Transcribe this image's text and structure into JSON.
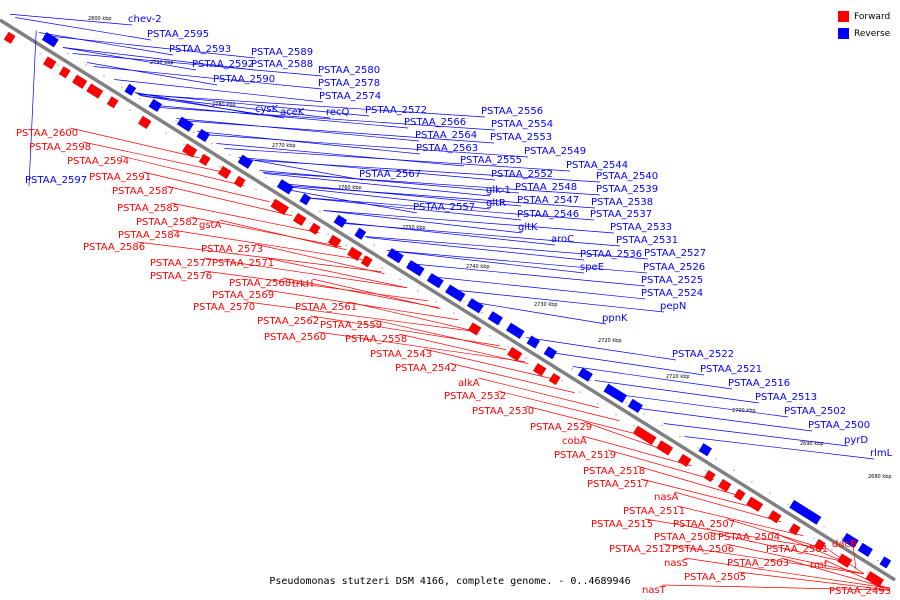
{
  "caption": "Pseudomonas stutzeri DSM 4166, complete genome. - 0..4689946",
  "legend": [
    {
      "label": "Forward",
      "color": "#ff0000"
    },
    {
      "label": "Reverse",
      "color": "#0000ff"
    }
  ],
  "colors": {
    "forward": "#ff0000",
    "reverse": "#0000ff",
    "axis": "#808080"
  },
  "scale_ticks": [
    "2800 kbp",
    "2790 kbp",
    "2780 kbp",
    "2770 kbp",
    "2760 kbp",
    "2750 kbp",
    "2740 kbp",
    "2730 kbp",
    "2720 kbp",
    "2710 kbp",
    "2700 kbp",
    "2690 kbp",
    "2680 kbp"
  ],
  "reverse_genes": [
    "chev-2",
    "PSTAA_2595",
    "PSTAA_2593",
    "PSTAA_2592",
    "PSTAA_2589",
    "PSTAA_2588",
    "PSTAA_2590",
    "PSTAA_2580",
    "PSTAA_2578",
    "PSTAA_2574",
    "cysK",
    "aceK",
    "recQ",
    "PSTAA_2572",
    "PSTAA_2566",
    "PSTAA_2564",
    "PSTAA_2563",
    "PSTAA_2556",
    "PSTAA_2554",
    "PSTAA_2553",
    "PSTAA_2549",
    "PSTAA_2555",
    "PSTAA_2552",
    "PSTAA_2544",
    "PSTAA_2540",
    "PSTAA_2567",
    "glk-1",
    "PSTAA_2548",
    "PSTAA_2539",
    "gltR",
    "PSTAA_2547",
    "PSTAA_2538",
    "PSTAA_2557",
    "PSTAA_2546",
    "PSTAA_2537",
    "gltK",
    "PSTAA_2533",
    "aroC",
    "PSTAA_2531",
    "PSTAA_2536",
    "PSTAA_2527",
    "speE",
    "PSTAA_2526",
    "PSTAA_2525",
    "PSTAA_2524",
    "pepN",
    "ppnK",
    "PSTAA_2522",
    "PSTAA_2521",
    "PSTAA_2516",
    "PSTAA_2513",
    "PSTAA_2502",
    "PSTAA_2500",
    "pyrD",
    "rlmL",
    "PSTAA_2597"
  ],
  "forward_genes": [
    "PSTAA_2600",
    "PSTAA_2598",
    "PSTAA_2594",
    "PSTAA_2591",
    "PSTAA_2587",
    "PSTAA_2585",
    "PSTAA_2582",
    "gstA",
    "PSTAA_2584",
    "PSTAA_2586",
    "PSTAA_2573",
    "PSTAA_2577",
    "PSTAA_2571",
    "PSTAA_2576",
    "PSTAA_2568",
    "trkH",
    "PSTAA_2569",
    "PSTAA_2570",
    "PSTAA_2561",
    "PSTAA_2562",
    "PSTAA_2559",
    "PSTAA_2560",
    "PSTAA_2558",
    "PSTAA_2543",
    "PSTAA_2542",
    "alkA",
    "PSTAA_2532",
    "PSTAA_2530",
    "PSTAA_2529",
    "cobA",
    "PSTAA_2519",
    "PSTAA_2518",
    "PSTAA_2517",
    "nasA",
    "PSTAA_2511",
    "PSTAA_2515",
    "PSTAA_2507",
    "PSTAA_2508",
    "PSTAA_2504",
    "PSTAA_2512",
    "PSTAA_2506",
    "PSTAA_2501",
    "nasS",
    "PSTAA_2503",
    "rmf",
    "dacB",
    "PSTAA_2505",
    "nasT",
    "PSTAA_2493"
  ]
}
